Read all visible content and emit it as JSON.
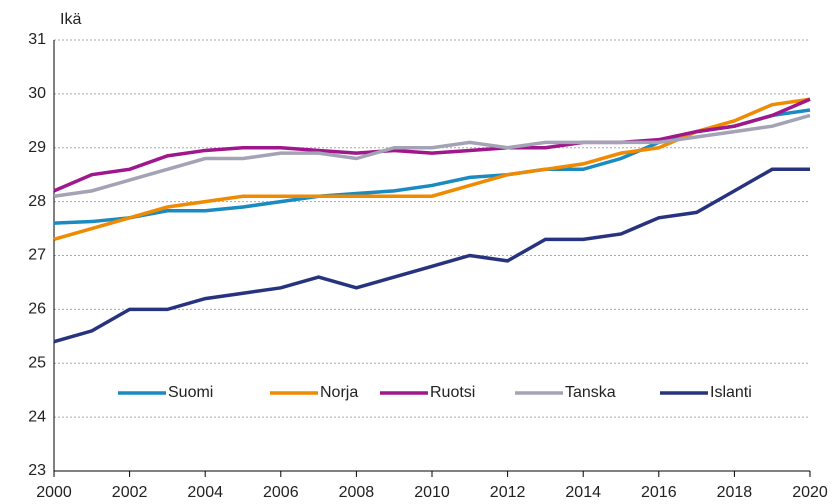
{
  "chart_data": {
    "type": "line",
    "y_label": "Ikä",
    "x": [
      2000,
      2001,
      2002,
      2003,
      2004,
      2005,
      2006,
      2007,
      2008,
      2009,
      2010,
      2011,
      2012,
      2013,
      2014,
      2015,
      2016,
      2017,
      2018,
      2019,
      2020
    ],
    "xlim": [
      2000,
      2020
    ],
    "xticks": [
      2000,
      2002,
      2004,
      2006,
      2008,
      2010,
      2012,
      2014,
      2016,
      2018,
      2020
    ],
    "ylim": [
      23,
      31
    ],
    "yticks": [
      23,
      24,
      25,
      26,
      27,
      28,
      29,
      30,
      31
    ],
    "grid": true,
    "legend": "bottom",
    "series": [
      {
        "name": "Suomi",
        "color": "#1a8bc0",
        "values": [
          27.6,
          27.63,
          27.7,
          27.83,
          27.83,
          27.9,
          28.0,
          28.1,
          28.15,
          28.2,
          28.3,
          28.45,
          28.5,
          28.6,
          28.6,
          28.8,
          29.1,
          29.3,
          29.4,
          29.6,
          29.7
        ]
      },
      {
        "name": "Norja",
        "color": "#f08a00",
        "values": [
          27.3,
          27.5,
          27.7,
          27.9,
          28.0,
          28.1,
          28.1,
          28.1,
          28.1,
          28.1,
          28.1,
          28.3,
          28.5,
          28.6,
          28.7,
          28.9,
          29.0,
          29.3,
          29.5,
          29.8,
          29.9
        ]
      },
      {
        "name": "Ruotsi",
        "color": "#a0168c",
        "values": [
          28.2,
          28.5,
          28.6,
          28.85,
          28.95,
          29.0,
          29.0,
          28.95,
          28.9,
          28.95,
          28.9,
          28.95,
          29.0,
          29.0,
          29.1,
          29.1,
          29.15,
          29.3,
          29.4,
          29.6,
          29.9
        ]
      },
      {
        "name": "Tanska",
        "color": "#a3a3b5",
        "values": [
          28.1,
          28.2,
          28.4,
          28.6,
          28.8,
          28.8,
          28.9,
          28.9,
          28.8,
          29.0,
          29.0,
          29.1,
          29.0,
          29.1,
          29.1,
          29.1,
          29.1,
          29.2,
          29.3,
          29.4,
          29.6
        ]
      },
      {
        "name": "Islanti",
        "color": "#28337f",
        "values": [
          25.4,
          25.6,
          26.0,
          26.0,
          26.2,
          26.3,
          26.4,
          26.6,
          26.4,
          26.6,
          26.8,
          27.0,
          26.9,
          27.3,
          27.3,
          27.4,
          27.7,
          27.8,
          28.2,
          28.6,
          28.6
        ]
      }
    ]
  }
}
